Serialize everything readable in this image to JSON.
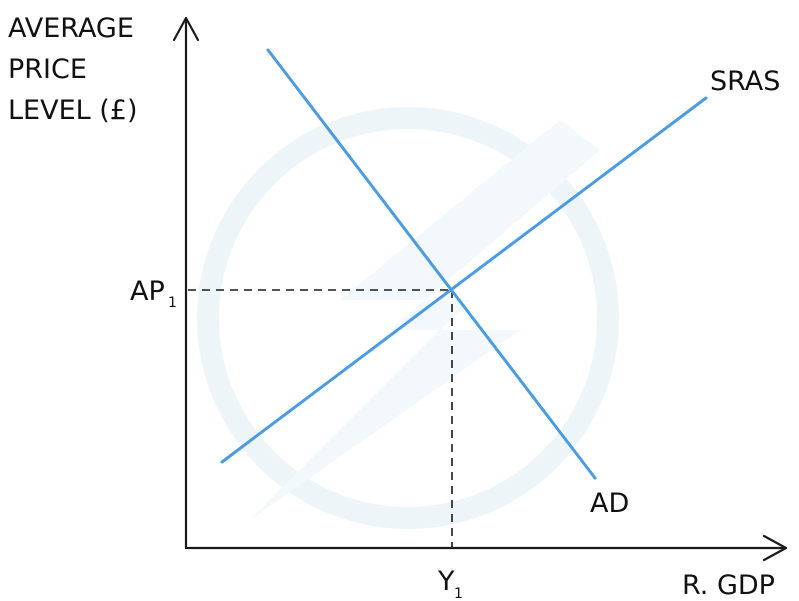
{
  "diagram": {
    "y_axis_label": [
      "AVERAGE",
      "PRICE",
      "LEVEL (£)"
    ],
    "x_axis_label": "R. GDP",
    "curves": {
      "ad": {
        "label": "AD",
        "color": "#4a9be0"
      },
      "sras": {
        "label": "SRAS",
        "color": "#4a9be0"
      }
    },
    "equilibrium": {
      "price_label": "AP",
      "price_subscript": "1",
      "output_label": "Y",
      "output_subscript": "1"
    }
  }
}
